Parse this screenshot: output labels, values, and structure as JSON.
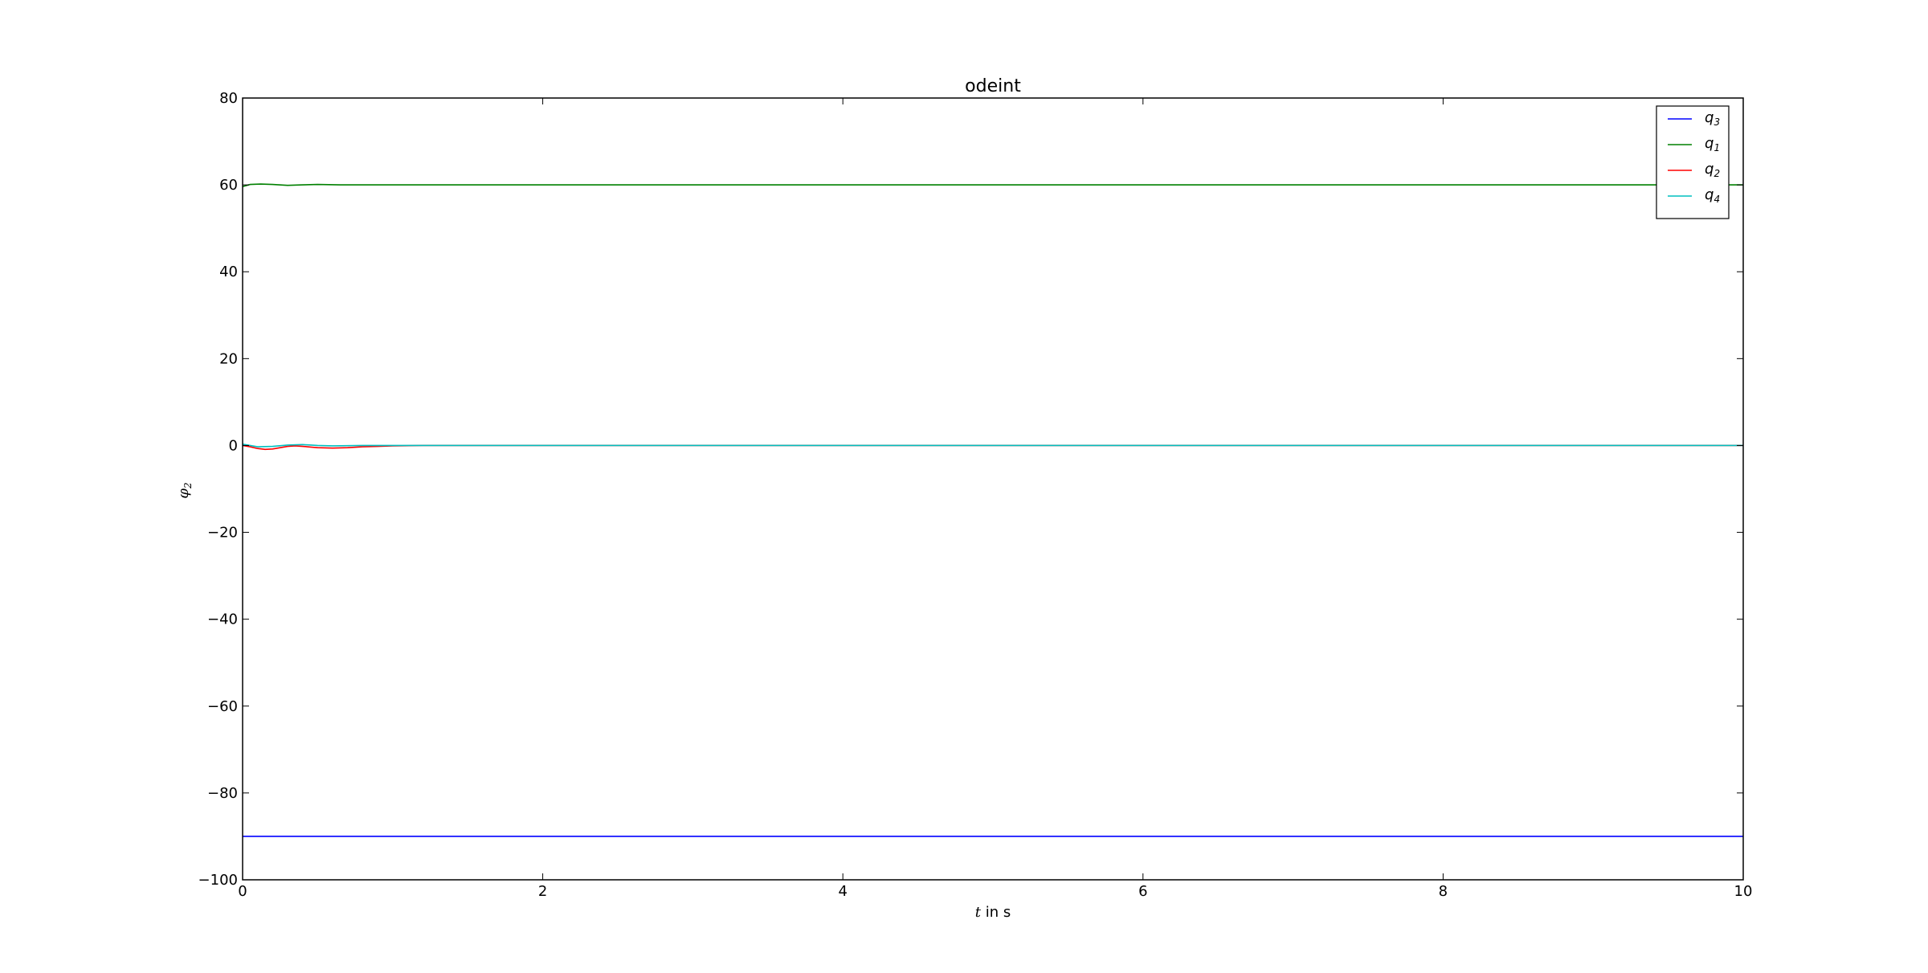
{
  "chart_data": {
    "type": "line",
    "title": "odeint",
    "xlabel": {
      "var": "t",
      "rest": " in s"
    },
    "ylabel": {
      "base": "φ",
      "sub": "2"
    },
    "xlim": [
      0,
      10
    ],
    "ylim": [
      -100,
      80
    ],
    "xticks": [
      0,
      2,
      4,
      6,
      8,
      10
    ],
    "yticks": [
      80,
      60,
      40,
      20,
      0,
      -20,
      -40,
      -60,
      -80,
      -100
    ],
    "xtick_labels": [
      "0",
      "2",
      "4",
      "6",
      "8",
      "10"
    ],
    "ytick_labels": [
      "80",
      "60",
      "40",
      "20",
      "0",
      "−20",
      "−40",
      "−60",
      "−80",
      "−100"
    ],
    "grid": false,
    "legend_position": "top-right",
    "series": [
      {
        "name": "q3",
        "label": {
          "base": "q",
          "sub": "3"
        },
        "color": "#0000ff",
        "x": [
          0,
          10
        ],
        "y": [
          -90,
          -90
        ]
      },
      {
        "name": "q1",
        "label": {
          "base": "q",
          "sub": "1"
        },
        "color": "#008000",
        "x": [
          0,
          0.05,
          0.12,
          0.2,
          0.3,
          0.4,
          0.5,
          0.65,
          0.8,
          1.0,
          10
        ],
        "y": [
          59.6,
          60.1,
          60.2,
          60.1,
          59.9,
          60.0,
          60.1,
          60.0,
          60.0,
          60.0,
          60.0
        ]
      },
      {
        "name": "q2",
        "label": {
          "base": "q",
          "sub": "2"
        },
        "color": "#ff0000",
        "x": [
          0,
          0.05,
          0.1,
          0.15,
          0.2,
          0.25,
          0.3,
          0.35,
          0.4,
          0.5,
          0.6,
          0.7,
          0.8,
          0.9,
          1.0,
          1.2,
          10
        ],
        "y": [
          0.0,
          -0.3,
          -0.7,
          -0.9,
          -0.8,
          -0.5,
          -0.2,
          -0.1,
          -0.2,
          -0.5,
          -0.6,
          -0.5,
          -0.3,
          -0.2,
          -0.1,
          0.0,
          0.0
        ]
      },
      {
        "name": "q4",
        "label": {
          "base": "q",
          "sub": "4"
        },
        "color": "#00bfbf",
        "x": [
          0,
          0.05,
          0.1,
          0.2,
          0.3,
          0.4,
          0.5,
          0.6,
          0.8,
          1.0,
          10
        ],
        "y": [
          0.3,
          0.0,
          -0.3,
          -0.2,
          0.1,
          0.2,
          0.0,
          -0.1,
          0.0,
          0.0,
          0.0
        ]
      }
    ]
  }
}
